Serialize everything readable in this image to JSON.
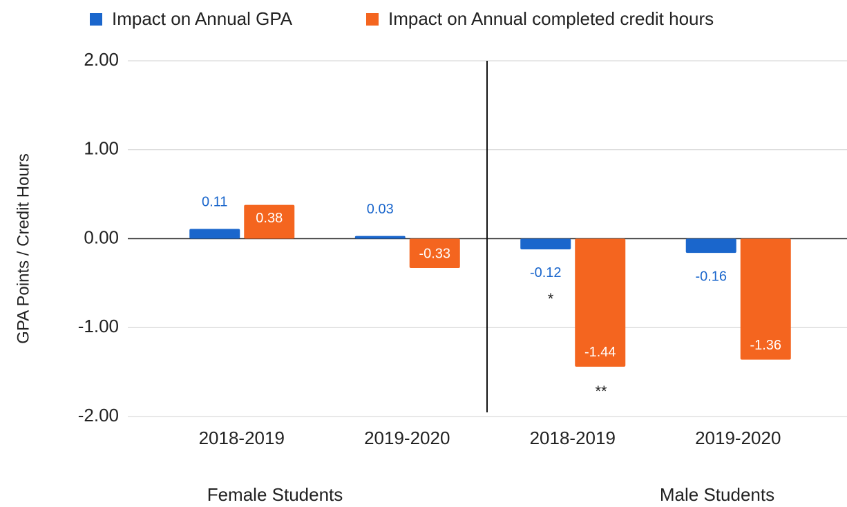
{
  "chart_data": {
    "type": "bar",
    "categories": [
      "2018-2019",
      "2019-2020",
      "2018-2019",
      "2019-2020"
    ],
    "groups": [
      "Female Students",
      "Male Students"
    ],
    "series": [
      {
        "name": "Impact on Annual GPA",
        "color": "#1a66cc",
        "values": [
          0.11,
          0.03,
          -0.12,
          -0.16
        ]
      },
      {
        "name": "Impact on Annual completed credit hours",
        "color": "#f4651f",
        "values": [
          0.38,
          -0.33,
          -1.44,
          -1.36
        ]
      }
    ],
    "ylabel": "GPA Points / Credit Hours",
    "annotations": [
      "*",
      "**"
    ],
    "ylim": [
      -2,
      2
    ],
    "yticks": [
      {
        "value": 2,
        "label": "2.00"
      },
      {
        "value": 1,
        "label": "1.00"
      },
      {
        "value": 0,
        "label": "0.00"
      },
      {
        "value": -1,
        "label": "-1.00"
      },
      {
        "value": -2,
        "label": "-2.00"
      }
    ],
    "grid": true,
    "legend": "top"
  }
}
